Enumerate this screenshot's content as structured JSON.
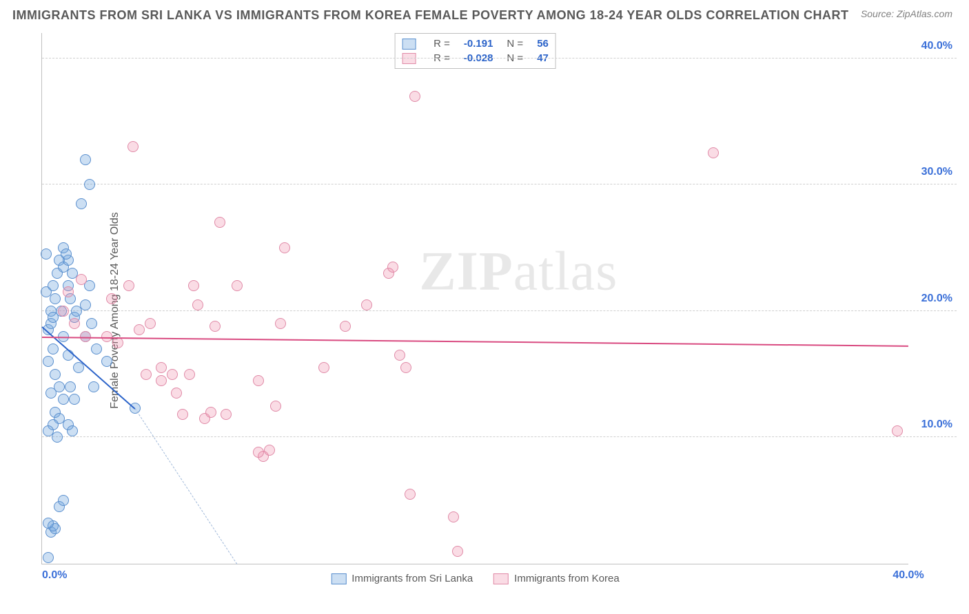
{
  "title": "IMMIGRANTS FROM SRI LANKA VS IMMIGRANTS FROM KOREA FEMALE POVERTY AMONG 18-24 YEAR OLDS CORRELATION CHART",
  "source": "Source: ZipAtlas.com",
  "watermark_bold": "ZIP",
  "watermark_rest": "atlas",
  "ylabel": "Female Poverty Among 18-24 Year Olds",
  "axis": {
    "xlim": [
      0,
      40
    ],
    "ylim": [
      0,
      42
    ],
    "yticks": [
      {
        "v": 10,
        "label": "10.0%"
      },
      {
        "v": 20,
        "label": "20.0%"
      },
      {
        "v": 30,
        "label": "30.0%"
      },
      {
        "v": 40,
        "label": "40.0%"
      }
    ],
    "xticks": [
      {
        "v": 0,
        "label": "0.0%",
        "align": "left"
      },
      {
        "v": 40,
        "label": "40.0%",
        "align": "center"
      }
    ],
    "ytick_color": "#3a6fd8",
    "xtick_color": "#3a6fd8",
    "grid_color": "#cfcfcf",
    "axis_color": "#bfbfbf"
  },
  "series": [
    {
      "name": "Immigrants from Sri Lanka",
      "fill": "rgba(108,162,220,0.35)",
      "stroke": "#5a8fce",
      "trend_color": "#2b63c9",
      "dash_color": "#9fb8d9",
      "point_radius": 8,
      "R": "-0.191",
      "N": "56",
      "trend": {
        "x1": 0,
        "y1": 18.8,
        "x2": 4.3,
        "y2": 12.3
      },
      "trend_dash": {
        "x1": 4.3,
        "y1": 12.3,
        "x2": 9.0,
        "y2": 0.0
      },
      "points": [
        [
          0.3,
          18.5
        ],
        [
          0.4,
          19.0
        ],
        [
          0.5,
          17.0
        ],
        [
          0.6,
          21.0
        ],
        [
          0.7,
          23.0
        ],
        [
          0.8,
          24.0
        ],
        [
          0.5,
          22.0
        ],
        [
          0.4,
          20.0
        ],
        [
          1.0,
          18.0
        ],
        [
          1.2,
          16.5
        ],
        [
          0.3,
          16.0
        ],
        [
          0.6,
          15.0
        ],
        [
          0.8,
          14.0
        ],
        [
          0.4,
          13.5
        ],
        [
          1.0,
          13.0
        ],
        [
          0.6,
          12.0
        ],
        [
          0.8,
          11.5
        ],
        [
          0.5,
          11.0
        ],
        [
          0.3,
          10.5
        ],
        [
          0.7,
          10.0
        ],
        [
          1.2,
          22.0
        ],
        [
          1.0,
          23.5
        ],
        [
          1.3,
          21.0
        ],
        [
          1.5,
          19.5
        ],
        [
          1.0,
          25.0
        ],
        [
          1.2,
          24.0
        ],
        [
          1.4,
          23.0
        ],
        [
          1.6,
          20.0
        ],
        [
          1.3,
          14.0
        ],
        [
          1.5,
          13.0
        ],
        [
          1.2,
          11.0
        ],
        [
          1.4,
          10.5
        ],
        [
          2.0,
          18.0
        ],
        [
          2.2,
          22.0
        ],
        [
          2.0,
          20.5
        ],
        [
          2.3,
          19.0
        ],
        [
          2.5,
          17.0
        ],
        [
          1.8,
          28.5
        ],
        [
          2.0,
          32.0
        ],
        [
          2.2,
          30.0
        ],
        [
          0.4,
          2.5
        ],
        [
          0.6,
          2.8
        ],
        [
          0.5,
          3.0
        ],
        [
          0.3,
          3.2
        ],
        [
          0.8,
          4.5
        ],
        [
          1.0,
          5.0
        ],
        [
          0.3,
          0.5
        ],
        [
          4.3,
          12.3
        ],
        [
          3.0,
          16.0
        ],
        [
          2.4,
          14.0
        ],
        [
          1.7,
          15.5
        ],
        [
          0.2,
          21.5
        ],
        [
          0.9,
          20.0
        ],
        [
          0.2,
          24.5
        ],
        [
          1.1,
          24.5
        ],
        [
          0.5,
          19.5
        ]
      ]
    },
    {
      "name": "Immigrants from Korea",
      "fill": "rgba(238,140,170,0.30)",
      "stroke": "#e08aa7",
      "trend_color": "#d94a80",
      "dash_color": "#e9aec0",
      "point_radius": 8,
      "R": "-0.028",
      "N": "47",
      "trend": {
        "x1": 0,
        "y1": 18.0,
        "x2": 40,
        "y2": 17.3
      },
      "points": [
        [
          1.0,
          20.0
        ],
        [
          1.2,
          21.5
        ],
        [
          1.5,
          19.0
        ],
        [
          1.8,
          22.5
        ],
        [
          2.0,
          18.0
        ],
        [
          3.0,
          18.0
        ],
        [
          3.5,
          17.5
        ],
        [
          4.0,
          22.0
        ],
        [
          4.2,
          33.0
        ],
        [
          4.5,
          18.5
        ],
        [
          5.0,
          19.0
        ],
        [
          5.5,
          15.5
        ],
        [
          6.0,
          15.0
        ],
        [
          6.2,
          13.5
        ],
        [
          6.5,
          11.8
        ],
        [
          7.0,
          22.0
        ],
        [
          7.2,
          20.5
        ],
        [
          7.5,
          11.5
        ],
        [
          7.8,
          12.0
        ],
        [
          8.0,
          18.8
        ],
        [
          8.2,
          27.0
        ],
        [
          9.0,
          22.0
        ],
        [
          10.0,
          14.5
        ],
        [
          10.2,
          8.5
        ],
        [
          10.5,
          9.0
        ],
        [
          10.8,
          12.5
        ],
        [
          11.0,
          19.0
        ],
        [
          11.2,
          25.0
        ],
        [
          13.0,
          15.5
        ],
        [
          14.0,
          18.8
        ],
        [
          15.0,
          20.5
        ],
        [
          16.0,
          23.0
        ],
        [
          16.2,
          23.5
        ],
        [
          16.5,
          16.5
        ],
        [
          16.8,
          15.5
        ],
        [
          17.0,
          5.5
        ],
        [
          17.2,
          37.0
        ],
        [
          19.0,
          3.7
        ],
        [
          19.2,
          1.0
        ],
        [
          31.0,
          32.5
        ],
        [
          39.5,
          10.5
        ],
        [
          5.5,
          14.5
        ],
        [
          6.8,
          15.0
        ],
        [
          4.8,
          15.0
        ],
        [
          8.5,
          11.8
        ],
        [
          10.0,
          8.8
        ],
        [
          3.2,
          21.0
        ]
      ]
    }
  ],
  "legend_top": {
    "rows": [
      {
        "swatch_idx": 0,
        "Rlabel": "R =",
        "Rval": "-0.191",
        "Nlabel": "N =",
        "Nval": "56"
      },
      {
        "swatch_idx": 1,
        "Rlabel": "R =",
        "Rval": "-0.028",
        "Nlabel": "N =",
        "Nval": "47"
      }
    ],
    "rval_color": "#2b63c9",
    "nval_color": "#2b63c9"
  },
  "legend_bottom": [
    {
      "swatch_idx": 0,
      "label": "Immigrants from Sri Lanka"
    },
    {
      "swatch_idx": 1,
      "label": "Immigrants from Korea"
    }
  ]
}
